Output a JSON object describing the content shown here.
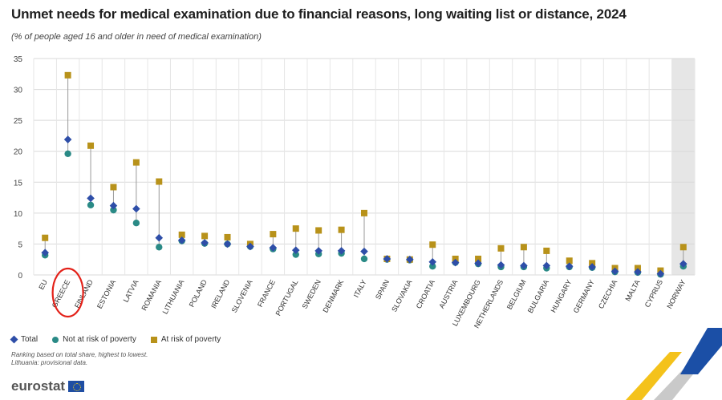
{
  "header": {
    "title": "Unmet needs for medical examination due to financial reasons, long waiting list or distance, 2024",
    "subtitle": "(% of people aged 16 and older in need of medical examination)"
  },
  "legend": {
    "total": "Total",
    "not_risk": "Not at risk of poverty",
    "at_risk": "At risk of poverty"
  },
  "notes": {
    "line1": "Ranking based on total share, highest to lowest.",
    "line2": "Lithuania: provisional data."
  },
  "branding": {
    "logo_text": "eurostat"
  },
  "colors": {
    "total": "#2e4ea8",
    "not_risk": "#2a8a86",
    "at_risk": "#b8921a",
    "grid": "#d9d9d9",
    "highlight_bg": "#e6e6e6",
    "annotation": "#e32119"
  },
  "chart_data": {
    "type": "scatter",
    "ylim": [
      0,
      35
    ],
    "yticks": [
      0,
      5,
      10,
      15,
      20,
      25,
      30,
      35
    ],
    "categories": [
      "EU",
      "GREECE",
      "FINLAND",
      "ESTONIA",
      "LATVIA",
      "ROMANIA",
      "LITHUANIA",
      "POLAND",
      "IRELAND",
      "SLOVENIA",
      "FRANCE",
      "PORTUGAL",
      "SWEDEN",
      "DENMARK",
      "ITALY",
      "SPAIN",
      "SLOVAKIA",
      "CROATIA",
      "AUSTRIA",
      "LUXEMBOURG",
      "NETHERLANDS",
      "BELGIUM",
      "BULGARIA",
      "HUNGARY",
      "GERMANY",
      "CZECHIA",
      "MALTA",
      "CYPRUS",
      "NORWAY"
    ],
    "series": [
      {
        "name": "Total",
        "values": [
          3.6,
          21.9,
          12.4,
          11.2,
          10.7,
          6.0,
          5.6,
          5.2,
          5.0,
          4.6,
          4.4,
          4.0,
          3.9,
          3.9,
          3.8,
          2.6,
          2.5,
          2.1,
          2.0,
          1.9,
          1.6,
          1.5,
          1.5,
          1.4,
          1.3,
          0.6,
          0.5,
          0.2,
          1.8
        ]
      },
      {
        "name": "Not at risk of poverty",
        "values": [
          3.2,
          19.6,
          11.3,
          10.5,
          8.4,
          4.5,
          5.5,
          5.1,
          5.0,
          4.6,
          4.2,
          3.3,
          3.4,
          3.5,
          2.6,
          2.5,
          2.4,
          1.4,
          2.0,
          1.8,
          1.3,
          1.3,
          1.1,
          1.3,
          1.2,
          0.5,
          0.4,
          0.1,
          1.4
        ]
      },
      {
        "name": "At risk of poverty",
        "values": [
          6.0,
          32.3,
          20.9,
          14.2,
          18.2,
          15.1,
          6.5,
          6.3,
          6.1,
          5.0,
          6.6,
          7.5,
          7.2,
          7.3,
          10.0,
          2.6,
          2.5,
          4.9,
          2.6,
          2.6,
          4.3,
          4.5,
          3.9,
          2.3,
          1.9,
          1.1,
          1.1,
          0.7,
          4.5
        ]
      }
    ],
    "highlighted_category": "NORWAY",
    "circled_category": "GREECE"
  }
}
